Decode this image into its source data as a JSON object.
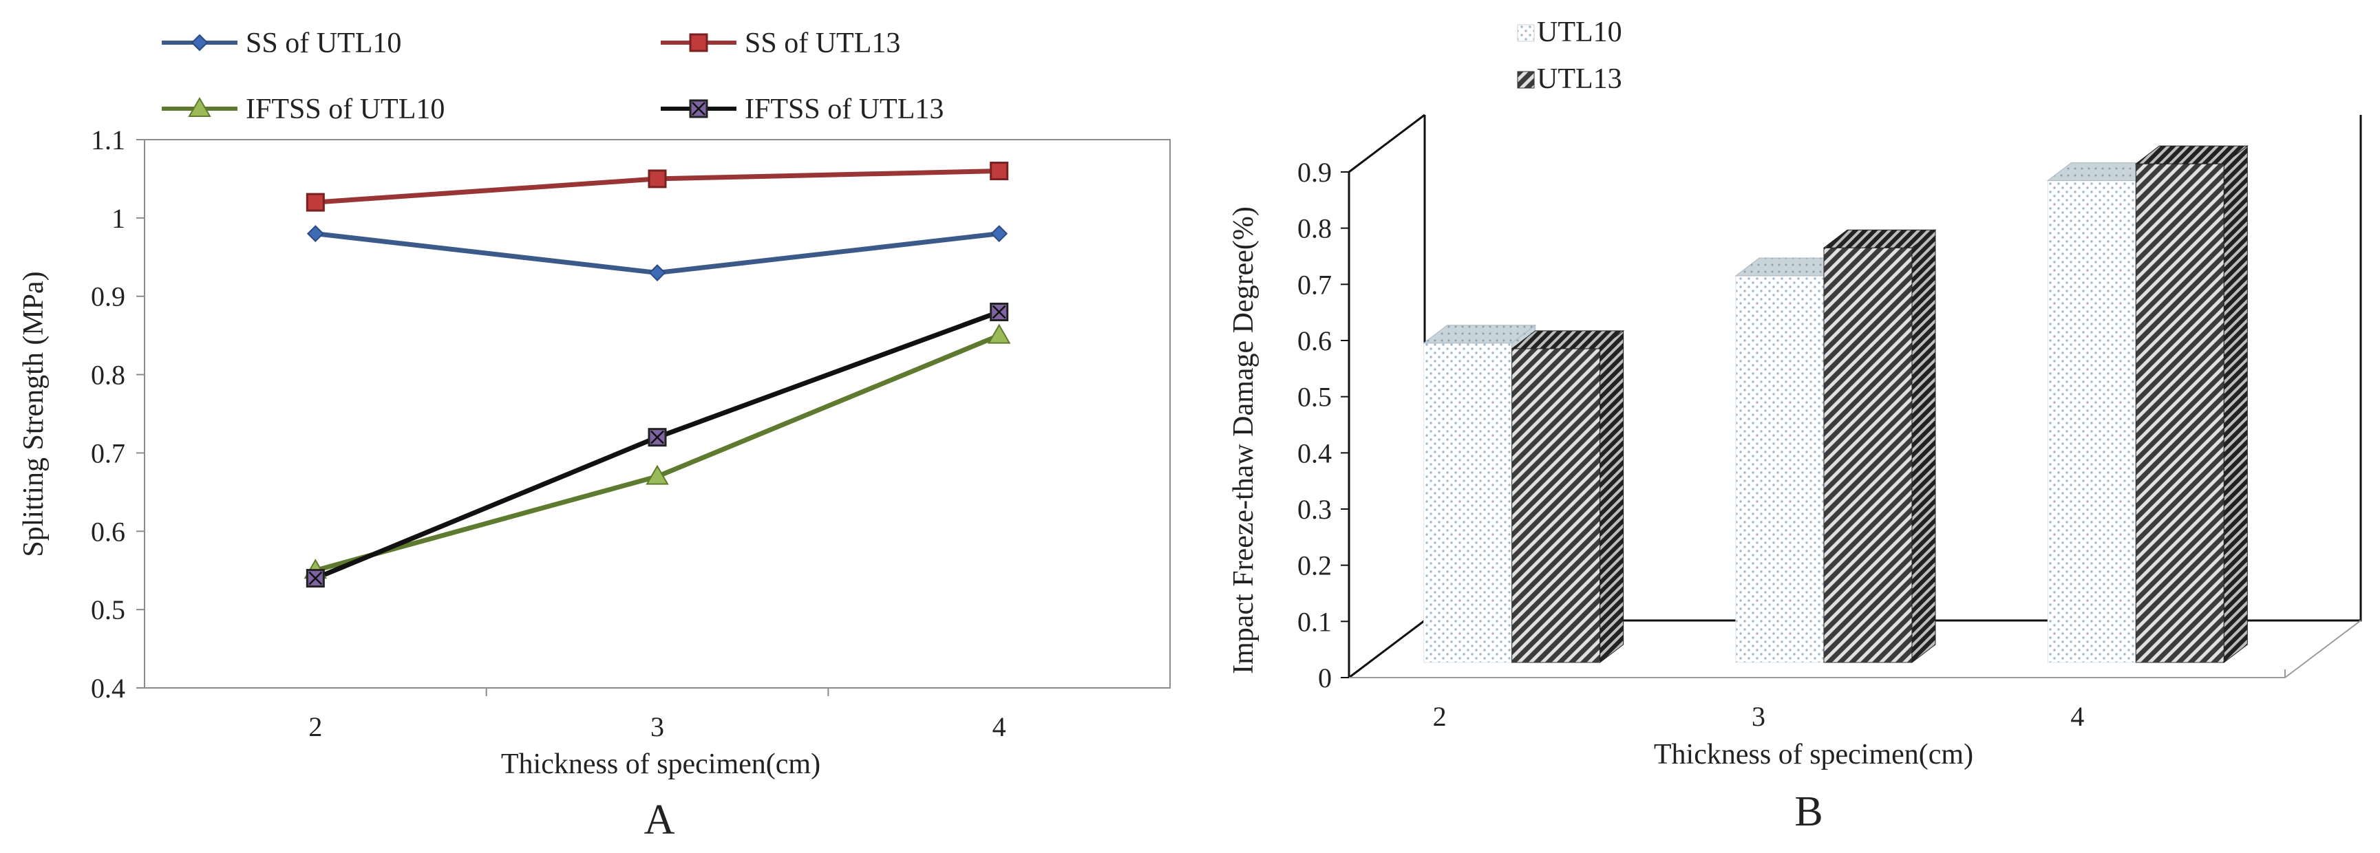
{
  "chart_data": [
    {
      "type": "line",
      "panel_label": "A",
      "title": "",
      "xlabel": "Thickness  of specimen(cm)",
      "ylabel": "Splitting Strength (MPa)",
      "x": [
        2,
        3,
        4
      ],
      "x_tick_labels": [
        "2",
        "3",
        "4"
      ],
      "ylim": [
        0.4,
        1.1
      ],
      "y_ticks": [
        0.4,
        0.5,
        0.6,
        0.7,
        0.8,
        0.9,
        1.0,
        1.1
      ],
      "y_tick_labels": [
        "0.4",
        "0.5",
        "0.6",
        "0.7",
        "0.8",
        "0.9",
        "1",
        "1.1"
      ],
      "legend_position": "top",
      "series": [
        {
          "name": "SS of UTL10",
          "values": [
            0.98,
            0.93,
            0.98
          ],
          "color": "#3b5a8a",
          "marker": "diamond"
        },
        {
          "name": "SS of UTL13",
          "values": [
            1.02,
            1.05,
            1.06
          ],
          "color": "#9a3535",
          "marker": "square"
        },
        {
          "name": "IFTSS of UTL10",
          "values": [
            0.55,
            0.67,
            0.85
          ],
          "color": "#5e7a2e",
          "marker": "triangle"
        },
        {
          "name": "IFTSS of UTL13",
          "values": [
            0.54,
            0.72,
            0.88
          ],
          "color": "#111111",
          "marker": "x-square"
        }
      ]
    },
    {
      "type": "bar",
      "panel_label": "B",
      "title": "",
      "xlabel": "Thickness  of specimen(cm)",
      "ylabel": "Impact Freeze-thaw Damage Degree(%)",
      "categories": [
        "2",
        "3",
        "4"
      ],
      "ylim": [
        0,
        0.9
      ],
      "y_ticks": [
        0,
        0.1,
        0.2,
        0.3,
        0.4,
        0.5,
        0.6,
        0.7,
        0.8,
        0.9
      ],
      "y_tick_labels": [
        "0",
        "0.1",
        "0.2",
        "0.3",
        "0.4",
        "0.5",
        "0.6",
        "0.7",
        "0.8",
        "0.9"
      ],
      "legend_position": "top-left",
      "series": [
        {
          "name": "UTL10",
          "values": [
            0.57,
            0.69,
            0.86
          ],
          "pattern": "dotted"
        },
        {
          "name": "UTL13",
          "values": [
            0.56,
            0.74,
            0.89
          ],
          "pattern": "hatched"
        }
      ]
    }
  ]
}
